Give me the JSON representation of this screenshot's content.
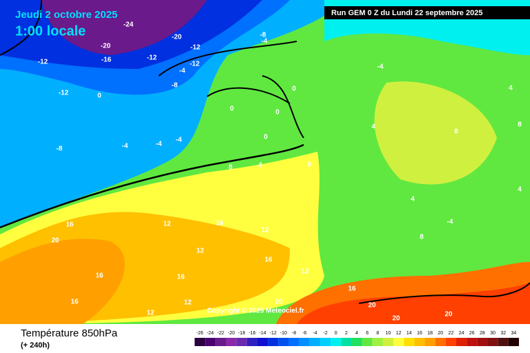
{
  "header": {
    "date": "Jeudi 2 octobre 2025",
    "time": "1:00 locale",
    "run": "Run GEM 0 Z du Lundi 22 septembre 2025"
  },
  "copyright": "Copyright © 2025 Meteociel.fr",
  "footer": {
    "title": "Température 850hPa",
    "lead": "(+ 240h)"
  },
  "scale": {
    "labels": [
      -26,
      -24,
      -22,
      -20,
      -18,
      -16,
      -14,
      -12,
      -10,
      -8,
      -6,
      -4,
      -2,
      0,
      2,
      4,
      6,
      8,
      10,
      12,
      14,
      16,
      18,
      20,
      22,
      24,
      26,
      28,
      30,
      32,
      34
    ],
    "colors": [
      "#2b0040",
      "#4a0070",
      "#6a1a8a",
      "#8a2aa8",
      "#6a2ab0",
      "#3020c0",
      "#1010d0",
      "#0030e0",
      "#0050f0",
      "#0070ff",
      "#0090ff",
      "#00b0ff",
      "#00d0ff",
      "#00f0f0",
      "#00e0a0",
      "#20e060",
      "#60e840",
      "#a0f040",
      "#d0f040",
      "#ffff40",
      "#ffe000",
      "#ffc000",
      "#ffa000",
      "#ff7000",
      "#ff4000",
      "#e02000",
      "#c01010",
      "#a01010",
      "#801010",
      "#501010",
      "#200000"
    ]
  },
  "map_labels": [
    -24,
    -20,
    -20,
    -16,
    -12,
    -12,
    -8,
    -4,
    -12,
    -12,
    -4,
    -8,
    -12,
    0,
    -8,
    -4,
    -4,
    -4,
    0,
    0,
    0,
    0,
    8,
    4,
    0,
    4,
    -4,
    8,
    8,
    4,
    4,
    4,
    -4,
    8,
    16,
    12,
    16,
    12,
    12,
    16,
    16,
    12,
    16,
    16,
    12,
    12,
    16,
    20,
    20,
    20,
    20,
    20
  ]
}
